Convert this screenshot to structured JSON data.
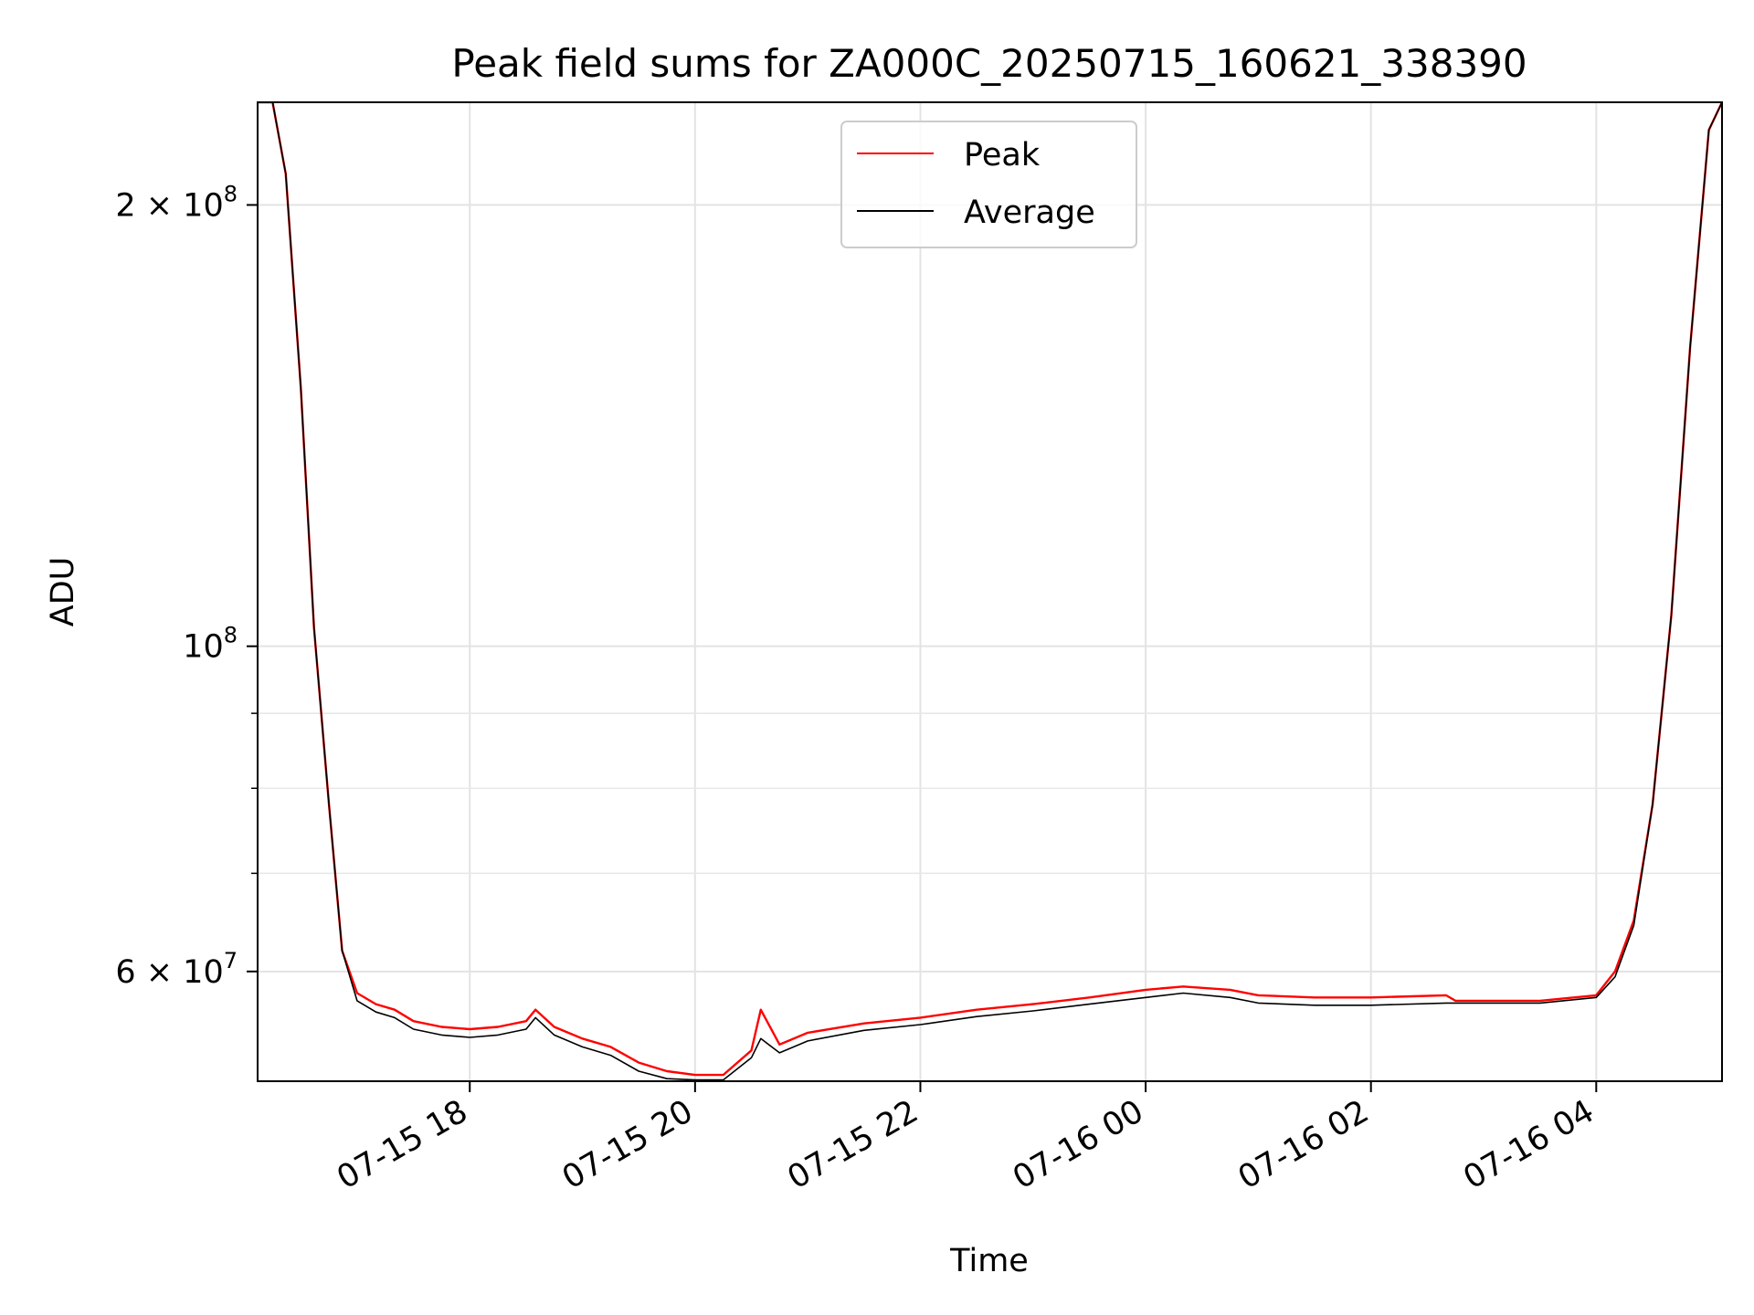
{
  "chart_data": {
    "type": "line",
    "title": "Peak field sums for ZA000C_20250715_160621_338390",
    "xlabel": "Time",
    "ylabel": "ADU",
    "y_scale": "log",
    "xlim": [
      "2025-07-15 16:07",
      "2025-07-16 05:07"
    ],
    "ylim": [
      50500000,
      235000000
    ],
    "grid": true,
    "legend_position": "top-center",
    "x_ticks": [
      {
        "value": "2025-07-15 18:00",
        "label": "07-15 18"
      },
      {
        "value": "2025-07-15 20:00",
        "label": "07-15 20"
      },
      {
        "value": "2025-07-15 22:00",
        "label": "07-15 22"
      },
      {
        "value": "2025-07-16 00:00",
        "label": "07-16 00"
      },
      {
        "value": "2025-07-16 02:00",
        "label": "07-16 02"
      },
      {
        "value": "2025-07-16 04:00",
        "label": "07-16 04"
      }
    ],
    "y_major_ticks": [
      {
        "value": 200000000,
        "mantissa": "2",
        "exponent": "8"
      },
      {
        "value": 100000000,
        "mantissa": "",
        "exponent": "8"
      },
      {
        "value": 60000000,
        "mantissa": "6",
        "exponent": "7"
      }
    ],
    "y_minor_ticks": [
      90000000,
      80000000,
      70000000,
      50000000
    ],
    "series": [
      {
        "name": "Peak",
        "color": "#ff0000",
        "x": [
          "2025-07-15 16:07",
          "2025-07-15 16:15",
          "2025-07-15 16:22",
          "2025-07-15 16:30",
          "2025-07-15 16:37",
          "2025-07-15 16:45",
          "2025-07-15 16:52",
          "2025-07-15 17:00",
          "2025-07-15 17:10",
          "2025-07-15 17:20",
          "2025-07-15 17:30",
          "2025-07-15 17:45",
          "2025-07-15 18:00",
          "2025-07-15 18:15",
          "2025-07-15 18:30",
          "2025-07-15 18:35",
          "2025-07-15 18:45",
          "2025-07-15 19:00",
          "2025-07-15 19:15",
          "2025-07-15 19:30",
          "2025-07-15 19:45",
          "2025-07-15 20:00",
          "2025-07-15 20:15",
          "2025-07-15 20:30",
          "2025-07-15 20:35",
          "2025-07-15 20:45",
          "2025-07-15 21:00",
          "2025-07-15 21:30",
          "2025-07-15 22:00",
          "2025-07-15 22:30",
          "2025-07-15 23:00",
          "2025-07-15 23:30",
          "2025-07-16 00:00",
          "2025-07-16 00:20",
          "2025-07-16 00:45",
          "2025-07-16 01:00",
          "2025-07-16 01:30",
          "2025-07-16 02:00",
          "2025-07-16 02:40",
          "2025-07-16 02:45",
          "2025-07-16 03:00",
          "2025-07-16 03:30",
          "2025-07-16 04:00",
          "2025-07-16 04:10",
          "2025-07-16 04:20",
          "2025-07-16 04:30",
          "2025-07-16 04:40",
          "2025-07-16 04:50",
          "2025-07-16 05:00",
          "2025-07-16 05:07"
        ],
        "y": [
          235000000,
          235000000,
          210000000,
          150000000,
          103000000,
          78000000,
          62000000,
          58000000,
          57000000,
          56500000,
          55500000,
          55000000,
          54800000,
          55000000,
          55500000,
          56500000,
          55000000,
          54000000,
          53300000,
          52000000,
          51300000,
          51000000,
          51000000,
          53000000,
          56500000,
          53500000,
          54500000,
          55300000,
          55800000,
          56500000,
          57000000,
          57600000,
          58300000,
          58600000,
          58300000,
          57800000,
          57600000,
          57600000,
          57800000,
          57300000,
          57300000,
          57300000,
          57800000,
          60000000,
          65000000,
          78000000,
          105000000,
          160000000,
          225000000,
          235000000
        ]
      },
      {
        "name": "Average",
        "color": "#000000",
        "x": [
          "2025-07-15 16:07",
          "2025-07-15 16:15",
          "2025-07-15 16:22",
          "2025-07-15 16:30",
          "2025-07-15 16:37",
          "2025-07-15 16:45",
          "2025-07-15 16:52",
          "2025-07-15 17:00",
          "2025-07-15 17:10",
          "2025-07-15 17:20",
          "2025-07-15 17:30",
          "2025-07-15 17:45",
          "2025-07-15 18:00",
          "2025-07-15 18:15",
          "2025-07-15 18:30",
          "2025-07-15 18:35",
          "2025-07-15 18:45",
          "2025-07-15 19:00",
          "2025-07-15 19:15",
          "2025-07-15 19:30",
          "2025-07-15 19:45",
          "2025-07-15 20:00",
          "2025-07-15 20:15",
          "2025-07-15 20:30",
          "2025-07-15 20:35",
          "2025-07-15 20:45",
          "2025-07-15 21:00",
          "2025-07-15 21:30",
          "2025-07-15 22:00",
          "2025-07-15 22:30",
          "2025-07-15 23:00",
          "2025-07-15 23:30",
          "2025-07-16 00:00",
          "2025-07-16 00:20",
          "2025-07-16 00:45",
          "2025-07-16 01:00",
          "2025-07-16 01:30",
          "2025-07-16 02:00",
          "2025-07-16 02:40",
          "2025-07-16 02:45",
          "2025-07-16 03:00",
          "2025-07-16 03:30",
          "2025-07-16 04:00",
          "2025-07-16 04:10",
          "2025-07-16 04:20",
          "2025-07-16 04:30",
          "2025-07-16 04:40",
          "2025-07-16 04:50",
          "2025-07-16 05:00",
          "2025-07-16 05:07"
        ],
        "y": [
          235000000,
          235000000,
          210000000,
          150000000,
          103000000,
          78000000,
          62000000,
          57300000,
          56300000,
          55800000,
          54800000,
          54300000,
          54100000,
          54300000,
          54800000,
          55800000,
          54300000,
          53300000,
          52600000,
          51300000,
          50700000,
          50600000,
          50600000,
          52400000,
          54000000,
          52800000,
          53800000,
          54700000,
          55200000,
          55900000,
          56400000,
          57000000,
          57600000,
          58000000,
          57600000,
          57100000,
          56900000,
          56900000,
          57100000,
          57100000,
          57100000,
          57100000,
          57600000,
          59500000,
          64500000,
          78000000,
          105000000,
          160000000,
          225000000,
          235000000
        ]
      }
    ]
  }
}
